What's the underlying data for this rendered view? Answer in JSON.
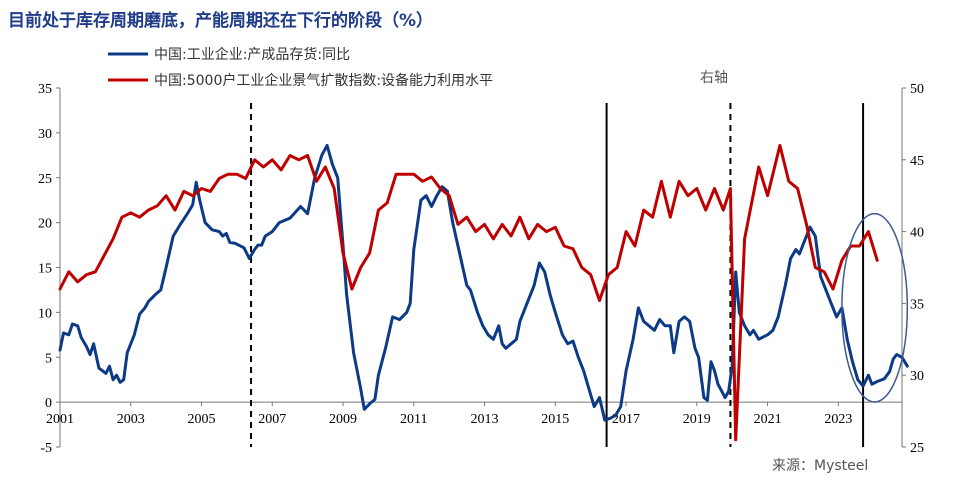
{
  "title": "目前处于库存周期磨底，产能周期还在下行的阶段（%）",
  "source": "来源：Mysteel",
  "right_axis_note": "右轴",
  "chart_data": {
    "type": "line",
    "x_ticks": [
      "2001",
      "2003",
      "2005",
      "2007",
      "2009",
      "2011",
      "2013",
      "2015",
      "2017",
      "2019",
      "2021",
      "2023"
    ],
    "y_left_ticks": [
      "35",
      "30",
      "25",
      "20",
      "15",
      "10",
      "5",
      "0",
      "-5"
    ],
    "y_right_ticks": [
      "50",
      "45",
      "40",
      "35",
      "30",
      "25"
    ],
    "ylim_left": [
      -5,
      35
    ],
    "ylim_right": [
      25,
      50
    ],
    "xlim": [
      2001,
      2024.8
    ],
    "vertical_lines": [
      {
        "x": 2006.4,
        "style": "dashed"
      },
      {
        "x": 2016.45,
        "style": "solid"
      },
      {
        "x": 2019.95,
        "style": "dashed"
      },
      {
        "x": 2023.7,
        "style": "solid"
      }
    ],
    "highlight_ellipse": {
      "x_range": [
        2023.1,
        2024.95
      ],
      "y_left_range": [
        -5,
        21
      ]
    },
    "series": [
      {
        "name": "中国:工业企业:产成品存货:同比",
        "axis": "left",
        "color": "#0c3a87",
        "points": [
          [
            2001.0,
            5.8
          ],
          [
            2001.1,
            7.7
          ],
          [
            2001.25,
            7.5
          ],
          [
            2001.35,
            8.7
          ],
          [
            2001.5,
            8.5
          ],
          [
            2001.6,
            7.2
          ],
          [
            2001.75,
            6.2
          ],
          [
            2001.85,
            5.3
          ],
          [
            2001.95,
            6.5
          ],
          [
            2002.1,
            3.8
          ],
          [
            2002.3,
            3.2
          ],
          [
            2002.4,
            4.0
          ],
          [
            2002.5,
            2.5
          ],
          [
            2002.6,
            3.0
          ],
          [
            2002.7,
            2.2
          ],
          [
            2002.8,
            2.5
          ],
          [
            2002.9,
            5.5
          ],
          [
            2003.1,
            7.5
          ],
          [
            2003.25,
            9.8
          ],
          [
            2003.4,
            10.5
          ],
          [
            2003.5,
            11.2
          ],
          [
            2003.7,
            12.0
          ],
          [
            2003.85,
            12.5
          ],
          [
            2004.0,
            15.0
          ],
          [
            2004.2,
            18.5
          ],
          [
            2004.4,
            19.8
          ],
          [
            2004.6,
            21.0
          ],
          [
            2004.75,
            22.0
          ],
          [
            2004.85,
            24.5
          ],
          [
            2004.95,
            22.5
          ],
          [
            2005.1,
            20.0
          ],
          [
            2005.3,
            19.2
          ],
          [
            2005.5,
            19.0
          ],
          [
            2005.6,
            18.5
          ],
          [
            2005.7,
            18.8
          ],
          [
            2005.8,
            17.8
          ],
          [
            2005.95,
            17.7
          ],
          [
            2006.2,
            17.2
          ],
          [
            2006.35,
            16.0
          ],
          [
            2006.5,
            17.0
          ],
          [
            2006.6,
            17.5
          ],
          [
            2006.7,
            17.5
          ],
          [
            2006.8,
            18.5
          ],
          [
            2007.0,
            19.0
          ],
          [
            2007.2,
            20.0
          ],
          [
            2007.5,
            20.5
          ],
          [
            2007.8,
            21.8
          ],
          [
            2008.0,
            21.0
          ],
          [
            2008.2,
            25.0
          ],
          [
            2008.4,
            27.5
          ],
          [
            2008.55,
            28.6
          ],
          [
            2008.7,
            26.5
          ],
          [
            2008.85,
            25.0
          ],
          [
            2009.0,
            17.5
          ],
          [
            2009.1,
            12.0
          ],
          [
            2009.3,
            5.5
          ],
          [
            2009.5,
            1.5
          ],
          [
            2009.6,
            -0.8
          ],
          [
            2009.75,
            -0.2
          ],
          [
            2009.9,
            0.3
          ],
          [
            2010.0,
            3.0
          ],
          [
            2010.2,
            6.0
          ],
          [
            2010.4,
            9.5
          ],
          [
            2010.6,
            9.2
          ],
          [
            2010.8,
            10.0
          ],
          [
            2010.9,
            11.0
          ],
          [
            2011.0,
            17.0
          ],
          [
            2011.2,
            22.5
          ],
          [
            2011.35,
            23.0
          ],
          [
            2011.5,
            21.8
          ],
          [
            2011.65,
            23.0
          ],
          [
            2011.8,
            24.0
          ],
          [
            2011.95,
            23.5
          ],
          [
            2012.1,
            20.0
          ],
          [
            2012.3,
            16.5
          ],
          [
            2012.5,
            13.0
          ],
          [
            2012.6,
            12.5
          ],
          [
            2012.8,
            10.0
          ],
          [
            2012.95,
            8.5
          ],
          [
            2013.1,
            7.5
          ],
          [
            2013.25,
            7.0
          ],
          [
            2013.4,
            8.5
          ],
          [
            2013.5,
            6.5
          ],
          [
            2013.6,
            6.0
          ],
          [
            2013.75,
            6.5
          ],
          [
            2013.9,
            7.0
          ],
          [
            2014.0,
            9.0
          ],
          [
            2014.2,
            11.0
          ],
          [
            2014.4,
            13.0
          ],
          [
            2014.55,
            15.5
          ],
          [
            2014.7,
            14.5
          ],
          [
            2014.85,
            12.0
          ],
          [
            2015.0,
            10.0
          ],
          [
            2015.2,
            7.5
          ],
          [
            2015.35,
            6.5
          ],
          [
            2015.5,
            6.8
          ],
          [
            2015.65,
            5.0
          ],
          [
            2015.8,
            3.5
          ],
          [
            2015.95,
            1.5
          ],
          [
            2016.1,
            -0.5
          ],
          [
            2016.25,
            0.5
          ],
          [
            2016.4,
            -2.0
          ],
          [
            2016.55,
            -1.8
          ],
          [
            2016.7,
            -1.5
          ],
          [
            2016.85,
            -0.5
          ],
          [
            2017.0,
            3.5
          ],
          [
            2017.2,
            7.0
          ],
          [
            2017.35,
            10.5
          ],
          [
            2017.5,
            9.0
          ],
          [
            2017.65,
            8.5
          ],
          [
            2017.8,
            8.0
          ],
          [
            2017.95,
            9.2
          ],
          [
            2018.1,
            8.5
          ],
          [
            2018.25,
            8.5
          ],
          [
            2018.35,
            5.5
          ],
          [
            2018.5,
            9.0
          ],
          [
            2018.65,
            9.5
          ],
          [
            2018.8,
            9.0
          ],
          [
            2018.95,
            6.0
          ],
          [
            2019.05,
            5.0
          ],
          [
            2019.2,
            0.5
          ],
          [
            2019.3,
            0.2
          ],
          [
            2019.4,
            4.5
          ],
          [
            2019.5,
            3.5
          ],
          [
            2019.6,
            2.0
          ],
          [
            2019.8,
            0.5
          ],
          [
            2019.9,
            1.2
          ],
          [
            2020.0,
            4.0
          ],
          [
            2020.1,
            14.5
          ],
          [
            2020.2,
            10.0
          ],
          [
            2020.35,
            8.5
          ],
          [
            2020.5,
            7.5
          ],
          [
            2020.6,
            8.0
          ],
          [
            2020.75,
            7.0
          ],
          [
            2020.9,
            7.3
          ],
          [
            2021.0,
            7.5
          ],
          [
            2021.15,
            8.0
          ],
          [
            2021.3,
            9.5
          ],
          [
            2021.5,
            13.0
          ],
          [
            2021.65,
            16.0
          ],
          [
            2021.8,
            17.0
          ],
          [
            2021.9,
            16.5
          ],
          [
            2022.0,
            17.5
          ],
          [
            2022.2,
            19.5
          ],
          [
            2022.35,
            18.5
          ],
          [
            2022.5,
            14.0
          ],
          [
            2022.65,
            12.5
          ],
          [
            2022.8,
            11.0
          ],
          [
            2022.95,
            9.5
          ],
          [
            2023.1,
            10.5
          ],
          [
            2023.25,
            7.0
          ],
          [
            2023.4,
            4.5
          ],
          [
            2023.55,
            2.5
          ],
          [
            2023.7,
            1.8
          ],
          [
            2023.85,
            3.0
          ],
          [
            2023.95,
            2.0
          ],
          [
            2024.1,
            2.3
          ],
          [
            2024.3,
            2.6
          ],
          [
            2024.45,
            3.4
          ],
          [
            2024.55,
            4.8
          ],
          [
            2024.65,
            5.3
          ],
          [
            2024.8,
            5.0
          ],
          [
            2024.95,
            4.0
          ]
        ]
      },
      {
        "name": "中国:5000户工业企业景气扩散指数:设备能力利用水平",
        "axis": "right",
        "color": "#c00000",
        "points": [
          [
            2001.0,
            36.0
          ],
          [
            2001.25,
            37.2
          ],
          [
            2001.5,
            36.5
          ],
          [
            2001.75,
            37.0
          ],
          [
            2002.0,
            37.2
          ],
          [
            2002.5,
            39.5
          ],
          [
            2002.75,
            41.0
          ],
          [
            2003.0,
            41.3
          ],
          [
            2003.25,
            41.0
          ],
          [
            2003.5,
            41.5
          ],
          [
            2003.75,
            41.8
          ],
          [
            2004.0,
            42.5
          ],
          [
            2004.25,
            41.5
          ],
          [
            2004.5,
            42.8
          ],
          [
            2004.75,
            42.5
          ],
          [
            2005.0,
            43.0
          ],
          [
            2005.25,
            42.8
          ],
          [
            2005.5,
            43.7
          ],
          [
            2005.75,
            44.0
          ],
          [
            2006.0,
            44.0
          ],
          [
            2006.25,
            43.7
          ],
          [
            2006.5,
            45.0
          ],
          [
            2006.75,
            44.5
          ],
          [
            2007.0,
            45.0
          ],
          [
            2007.25,
            44.3
          ],
          [
            2007.5,
            45.3
          ],
          [
            2007.75,
            45.0
          ],
          [
            2008.0,
            45.3
          ],
          [
            2008.25,
            43.5
          ],
          [
            2008.5,
            44.5
          ],
          [
            2008.75,
            43.0
          ],
          [
            2009.0,
            38.5
          ],
          [
            2009.25,
            36.0
          ],
          [
            2009.5,
            37.5
          ],
          [
            2009.75,
            38.5
          ],
          [
            2010.0,
            41.5
          ],
          [
            2010.25,
            42.0
          ],
          [
            2010.5,
            44.0
          ],
          [
            2010.75,
            44.0
          ],
          [
            2011.0,
            44.0
          ],
          [
            2011.25,
            43.5
          ],
          [
            2011.5,
            43.8
          ],
          [
            2011.75,
            43.0
          ],
          [
            2012.0,
            42.5
          ],
          [
            2012.25,
            40.5
          ],
          [
            2012.5,
            41.0
          ],
          [
            2012.75,
            40.0
          ],
          [
            2013.0,
            40.5
          ],
          [
            2013.25,
            39.5
          ],
          [
            2013.5,
            40.5
          ],
          [
            2013.75,
            39.7
          ],
          [
            2014.0,
            41.0
          ],
          [
            2014.25,
            39.5
          ],
          [
            2014.5,
            40.5
          ],
          [
            2014.75,
            40.0
          ],
          [
            2015.0,
            40.3
          ],
          [
            2015.25,
            39.0
          ],
          [
            2015.5,
            38.8
          ],
          [
            2015.75,
            37.5
          ],
          [
            2016.0,
            37.0
          ],
          [
            2016.25,
            35.2
          ],
          [
            2016.5,
            37.0
          ],
          [
            2016.75,
            37.5
          ],
          [
            2017.0,
            40.0
          ],
          [
            2017.25,
            39.0
          ],
          [
            2017.5,
            41.5
          ],
          [
            2017.75,
            41.0
          ],
          [
            2018.0,
            43.5
          ],
          [
            2018.25,
            41.0
          ],
          [
            2018.5,
            43.5
          ],
          [
            2018.75,
            42.5
          ],
          [
            2019.0,
            43.0
          ],
          [
            2019.25,
            41.5
          ],
          [
            2019.5,
            43.0
          ],
          [
            2019.75,
            41.5
          ],
          [
            2019.95,
            43.0
          ],
          [
            2020.1,
            25.5
          ],
          [
            2020.35,
            39.5
          ],
          [
            2020.75,
            44.5
          ],
          [
            2021.0,
            42.5
          ],
          [
            2021.35,
            46.0
          ],
          [
            2021.6,
            43.5
          ],
          [
            2021.85,
            43.0
          ],
          [
            2022.1,
            40.5
          ],
          [
            2022.35,
            37.5
          ],
          [
            2022.6,
            37.2
          ],
          [
            2022.85,
            36.0
          ],
          [
            2023.1,
            38.0
          ],
          [
            2023.35,
            39.0
          ],
          [
            2023.6,
            39.0
          ],
          [
            2023.85,
            40.0
          ],
          [
            2024.1,
            38.0
          ]
        ]
      }
    ]
  }
}
